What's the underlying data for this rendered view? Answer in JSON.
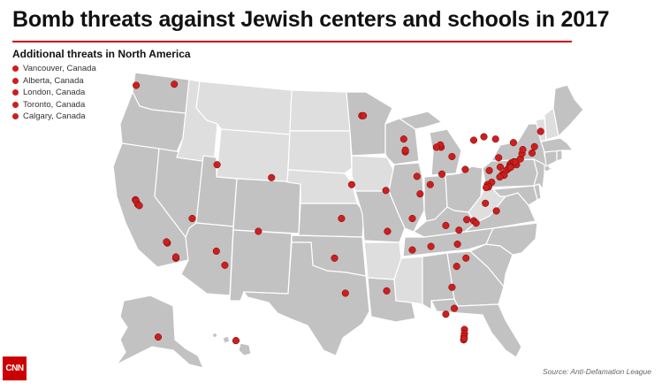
{
  "title": "Bomb threats against Jewish centers and schools in 2017",
  "legend": {
    "heading": "Additional threats in North America",
    "items": [
      {
        "label": "Vancouver, Canada"
      },
      {
        "label": "Alberta, Canada"
      },
      {
        "label": "London, Canada"
      },
      {
        "label": "Toronto, Canada"
      },
      {
        "label": "Calgary, Canada"
      }
    ]
  },
  "source": "Source: Anti-Defamation League",
  "logo_text": "CNN",
  "colors": {
    "threat_dot": "#cc1f1f",
    "state_with_threat": "#c2c2c2",
    "state_without_threat": "#dedede",
    "accent_rule": "#cc0000"
  },
  "threat_locations": [
    {
      "place": "Seattle, WA",
      "lon": -122.3,
      "lat": 47.6
    },
    {
      "place": "Spokane, WA",
      "lon": -117.4,
      "lat": 47.7
    },
    {
      "place": "San Francisco, CA",
      "lon": -122.4,
      "lat": 37.8
    },
    {
      "place": "Oakland, CA",
      "lon": -122.3,
      "lat": 37.7
    },
    {
      "place": "Palo Alto, CA",
      "lon": -122.1,
      "lat": 37.4
    },
    {
      "place": "San Jose, CA",
      "lon": -121.9,
      "lat": 37.3
    },
    {
      "place": "Los Angeles, CA",
      "lon": -118.3,
      "lat": 34.1
    },
    {
      "place": "Van Nuys, CA",
      "lon": -118.4,
      "lat": 34.2
    },
    {
      "place": "San Diego, CA",
      "lon": -117.2,
      "lat": 32.8
    },
    {
      "place": "La Jolla, CA",
      "lon": -117.2,
      "lat": 32.9
    },
    {
      "place": "Las Vegas, NV",
      "lon": -115.1,
      "lat": 36.2
    },
    {
      "place": "Salt Lake City, UT",
      "lon": -111.9,
      "lat": 40.8
    },
    {
      "place": "Phoenix, AZ",
      "lon": -112.0,
      "lat": 33.4
    },
    {
      "place": "Tucson, AZ",
      "lon": -110.9,
      "lat": 32.2
    },
    {
      "place": "Albuquerque, NM",
      "lon": -106.6,
      "lat": 35.1
    },
    {
      "place": "Denver, CO",
      "lon": -104.9,
      "lat": 39.7
    },
    {
      "place": "Minneapolis, MN",
      "lon": -93.3,
      "lat": 45.0
    },
    {
      "place": "St. Paul, MN",
      "lon": -93.1,
      "lat": 45.0
    },
    {
      "place": "Milwaukee, WI",
      "lon": -87.9,
      "lat": 43.0
    },
    {
      "place": "Chicago, IL",
      "lon": -87.7,
      "lat": 41.9
    },
    {
      "place": "Evanston, IL",
      "lon": -87.7,
      "lat": 42.05
    },
    {
      "place": "St. Louis, MO",
      "lon": -90.2,
      "lat": 38.6
    },
    {
      "place": "Kansas City, KS",
      "lon": -94.6,
      "lat": 39.1
    },
    {
      "place": "Tulsa, OK",
      "lon": -95.9,
      "lat": 36.2
    },
    {
      "place": "Dallas, TX",
      "lon": -96.8,
      "lat": 32.8
    },
    {
      "place": "Houston, TX",
      "lon": -95.4,
      "lat": 29.8
    },
    {
      "place": "New Orleans, LA",
      "lon": -90.1,
      "lat": 30.0
    },
    {
      "place": "Memphis, TN",
      "lon": -90.0,
      "lat": 35.1
    },
    {
      "place": "Nashville, TN",
      "lon": -86.8,
      "lat": 36.2
    },
    {
      "place": "Birmingham, AL",
      "lon": -86.8,
      "lat": 33.5
    },
    {
      "place": "Atlanta, GA",
      "lon": -84.4,
      "lat": 33.8
    },
    {
      "place": "Louisville, KY",
      "lon": -85.8,
      "lat": 38.3
    },
    {
      "place": "Indianapolis, IN",
      "lon": -86.2,
      "lat": 39.8
    },
    {
      "place": "Cincinnati, OH",
      "lon": -84.5,
      "lat": 39.1
    },
    {
      "place": "Columbus, OH",
      "lon": -83.0,
      "lat": 40.0
    },
    {
      "place": "Cleveland, OH",
      "lon": -81.7,
      "lat": 41.5
    },
    {
      "place": "Detroit, MI",
      "lon": -83.1,
      "lat": 42.3
    },
    {
      "place": "Southfield, MI",
      "lon": -83.2,
      "lat": 42.5
    },
    {
      "place": "Ann Arbor, MI",
      "lon": -83.7,
      "lat": 42.3
    },
    {
      "place": "Buffalo, NY",
      "lon": -78.9,
      "lat": 42.9
    },
    {
      "place": "Rochester, NY",
      "lon": -77.6,
      "lat": 43.2
    },
    {
      "place": "Syracuse, NY",
      "lon": -76.1,
      "lat": 43.0
    },
    {
      "place": "Albany, NY",
      "lon": -73.8,
      "lat": 42.7
    },
    {
      "place": "Pittsburgh, PA",
      "lon": -80.0,
      "lat": 40.4
    },
    {
      "place": "Harrisburg, PA",
      "lon": -76.9,
      "lat": 40.3
    },
    {
      "place": "Philadelphia, PA",
      "lon": -75.2,
      "lat": 40.0
    },
    {
      "place": "Cherry Hill, NJ",
      "lon": -75.0,
      "lat": 39.9
    },
    {
      "place": "Wilmington, DE",
      "lon": -75.55,
      "lat": 39.75
    },
    {
      "place": "Baltimore, MD",
      "lon": -76.6,
      "lat": 39.3
    },
    {
      "place": "Rockville, MD",
      "lon": -77.15,
      "lat": 39.1
    },
    {
      "place": "Washington, DC",
      "lon": -77.0,
      "lat": 38.9
    },
    {
      "place": "Fairfax, VA",
      "lon": -77.3,
      "lat": 38.85
    },
    {
      "place": "Richmond, VA",
      "lon": -77.4,
      "lat": 37.5
    },
    {
      "place": "Virginia Beach, VA",
      "lon": -76.0,
      "lat": 36.85
    },
    {
      "place": "Greensboro, NC",
      "lon": -79.8,
      "lat": 36.1
    },
    {
      "place": "Durham, NC",
      "lon": -78.9,
      "lat": 36.0
    },
    {
      "place": "Raleigh, NC",
      "lon": -78.6,
      "lat": 35.8
    },
    {
      "place": "Charlotte, NC",
      "lon": -80.8,
      "lat": 35.2
    },
    {
      "place": "Asheville, NC",
      "lon": -82.5,
      "lat": 35.6
    },
    {
      "place": "Columbia, SC",
      "lon": -81.0,
      "lat": 34.0
    },
    {
      "place": "Charleston, SC",
      "lon": -79.9,
      "lat": 32.8
    },
    {
      "place": "Savannah, GA",
      "lon": -81.1,
      "lat": 32.1
    },
    {
      "place": "Jacksonville, FL",
      "lon": -81.7,
      "lat": 30.3
    },
    {
      "place": "Tampa, FL",
      "lon": -82.5,
      "lat": 28.0
    },
    {
      "place": "Orlando, FL",
      "lon": -81.4,
      "lat": 28.5
    },
    {
      "place": "West Palm Beach, FL",
      "lon": -80.1,
      "lat": 26.7
    },
    {
      "place": "Boca Raton, FL",
      "lon": -80.1,
      "lat": 26.35
    },
    {
      "place": "Fort Lauderdale, FL",
      "lon": -80.15,
      "lat": 26.1
    },
    {
      "place": "Miami, FL",
      "lon": -80.2,
      "lat": 25.8
    },
    {
      "place": "Miami Beach, FL",
      "lon": -80.13,
      "lat": 25.9
    },
    {
      "place": "Scranton, PA",
      "lon": -75.7,
      "lat": 41.4
    },
    {
      "place": "Allentown, PA",
      "lon": -75.5,
      "lat": 40.6
    },
    {
      "place": "Princeton, NJ",
      "lon": -74.65,
      "lat": 40.35
    },
    {
      "place": "Edison, NJ",
      "lon": -74.4,
      "lat": 40.5
    },
    {
      "place": "Newark, NJ",
      "lon": -74.2,
      "lat": 40.7
    },
    {
      "place": "West Orange, NJ",
      "lon": -74.25,
      "lat": 40.8
    },
    {
      "place": "Paramus, NJ",
      "lon": -74.1,
      "lat": 40.95
    },
    {
      "place": "New York, NY",
      "lon": -74.0,
      "lat": 40.75
    },
    {
      "place": "Staten Island, NY",
      "lon": -74.15,
      "lat": 40.58
    },
    {
      "place": "White Plains, NY",
      "lon": -73.75,
      "lat": 41.05
    },
    {
      "place": "Long Island, NY",
      "lon": -73.4,
      "lat": 40.8
    },
    {
      "place": "Stamford, CT",
      "lon": -73.55,
      "lat": 41.05
    },
    {
      "place": "New Haven, CT",
      "lon": -72.9,
      "lat": 41.3
    },
    {
      "place": "Hartford, CT",
      "lon": -72.7,
      "lat": 41.75
    },
    {
      "place": "Providence, RI",
      "lon": -71.4,
      "lat": 41.8
    },
    {
      "place": "Boston, MA",
      "lon": -71.1,
      "lat": 42.35
    },
    {
      "place": "Springfield, MA",
      "lon": -72.6,
      "lat": 42.1
    },
    {
      "place": "Portland, ME",
      "lon": -70.3,
      "lat": 43.65
    },
    {
      "place": "Anchorage, AK",
      "lon": -149.9,
      "lat": 61.2
    },
    {
      "place": "Honolulu, HI",
      "lon": -157.9,
      "lat": 21.3
    }
  ]
}
